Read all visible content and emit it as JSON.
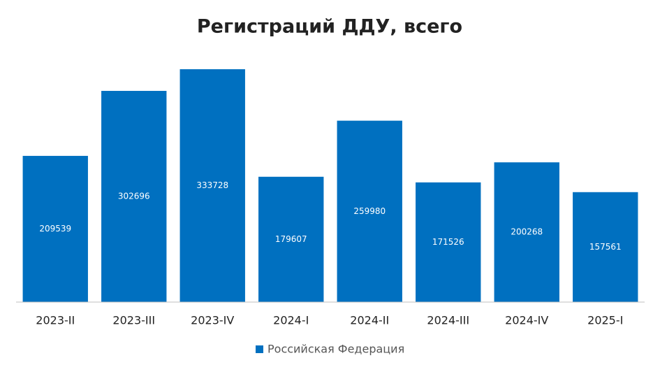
{
  "chart_data": {
    "type": "bar",
    "title": "Регистраций ДДУ, всего",
    "categories": [
      "2023-II",
      "2023-III",
      "2023-IV",
      "2024-I",
      "2024-II",
      "2024-III",
      "2024-IV",
      "2025-I"
    ],
    "series": [
      {
        "name": "Российская Федерация",
        "color": "#0070c0",
        "values": [
          209539,
          302696,
          333728,
          179607,
          259980,
          171526,
          200268,
          157561
        ]
      }
    ],
    "legend": "bottom"
  }
}
